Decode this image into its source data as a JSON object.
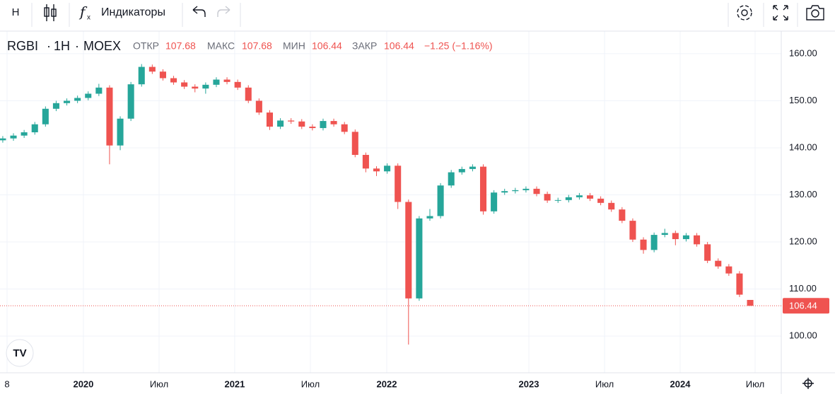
{
  "chart_data": {
    "type": "candlestick",
    "toolbar": {
      "interval": "Н",
      "indicators": "Индикаторы"
    },
    "symbol": "RGBI",
    "timeframe": "1H",
    "exchange": "MOEX",
    "legend_labels": {
      "open": "ОТКР",
      "high": "МАКС",
      "low": "МИН",
      "close": "ЗАКР"
    },
    "change_text": "−1.25 (−1.16%)",
    "up_color": "#26a69a",
    "down_color": "#ef5350",
    "grid": true,
    "x": [
      0,
      1,
      2,
      3,
      4,
      5,
      6,
      7,
      8,
      9,
      10,
      11,
      12,
      13,
      14,
      15,
      16,
      17,
      18,
      19,
      20,
      21,
      22,
      23,
      24,
      25,
      26,
      27,
      28,
      29,
      30,
      31,
      32,
      33,
      34,
      35,
      36,
      37,
      38,
      39,
      40,
      41,
      42,
      43,
      44,
      45,
      46,
      47,
      48,
      49,
      50,
      51,
      52,
      53,
      54,
      55,
      56,
      57,
      58,
      59,
      60,
      61,
      62,
      63,
      64,
      65,
      66,
      67,
      68,
      69,
      70
    ],
    "open": [
      141.6,
      142.0,
      142.6,
      143.3,
      145.0,
      148.3,
      149.5,
      150.0,
      150.6,
      151.5,
      152.8,
      140.5,
      146.2,
      153.5,
      157.2,
      156.2,
      154.8,
      153.9,
      153.0,
      152.6,
      153.4,
      154.5,
      154.0,
      152.8,
      150.0,
      147.5,
      144.5,
      145.8,
      145.6,
      144.5,
      144.2,
      145.7,
      145.0,
      143.4,
      138.5,
      135.6,
      135.0,
      136.2,
      128.5,
      108.0,
      125.0,
      125.5,
      132.0,
      134.8,
      135.5,
      136.0,
      126.5,
      130.5,
      130.8,
      131.0,
      131.3,
      130.2,
      128.8,
      128.9,
      129.5,
      129.9,
      129.2,
      128.3,
      126.9,
      124.5,
      120.5,
      118.3,
      121.5,
      121.9,
      120.6,
      121.4,
      119.5,
      116.0,
      114.8,
      113.3,
      107.68
    ],
    "high": [
      142.5,
      143.1,
      143.8,
      145.5,
      148.8,
      150.0,
      150.5,
      151.1,
      152.0,
      153.6,
      153.3,
      146.7,
      154.0,
      157.8,
      157.7,
      156.7,
      155.3,
      154.4,
      153.5,
      153.9,
      155.0,
      155.0,
      154.5,
      153.3,
      150.5,
      148.0,
      146.3,
      146.3,
      146.1,
      145.0,
      146.2,
      146.2,
      145.5,
      143.9,
      139.0,
      136.1,
      136.7,
      136.7,
      129.0,
      125.5,
      127.0,
      132.5,
      135.3,
      136.0,
      136.5,
      136.5,
      131.0,
      131.3,
      131.5,
      131.8,
      131.8,
      130.7,
      129.4,
      130.0,
      130.4,
      130.4,
      129.7,
      128.8,
      127.4,
      125.0,
      121.0,
      122.0,
      122.8,
      122.4,
      121.9,
      121.9,
      120.0,
      116.5,
      115.3,
      113.8,
      107.68
    ],
    "low": [
      141.1,
      141.5,
      142.1,
      142.8,
      144.5,
      147.8,
      149.0,
      149.5,
      150.1,
      151.0,
      136.5,
      139.5,
      145.7,
      153.0,
      155.7,
      154.3,
      153.4,
      152.5,
      151.8,
      151.5,
      152.9,
      153.5,
      152.3,
      149.5,
      147.0,
      143.8,
      144.0,
      145.1,
      144.0,
      143.7,
      143.7,
      144.5,
      142.9,
      138.0,
      134.8,
      134.0,
      134.5,
      127.0,
      98.2,
      107.5,
      124.5,
      125.0,
      131.5,
      134.3,
      135.0,
      125.8,
      126.0,
      130.0,
      130.3,
      130.5,
      129.7,
      128.3,
      128.3,
      128.4,
      129.0,
      128.7,
      127.8,
      126.4,
      124.0,
      120.0,
      117.5,
      117.8,
      121.0,
      119.3,
      120.1,
      119.0,
      115.5,
      114.3,
      112.8,
      108.3,
      106.44
    ],
    "close": [
      142.0,
      142.6,
      143.3,
      145.0,
      148.3,
      149.5,
      150.0,
      150.6,
      151.5,
      152.8,
      140.5,
      146.2,
      153.5,
      157.2,
      156.2,
      154.8,
      153.9,
      153.0,
      152.6,
      153.4,
      154.5,
      154.0,
      152.8,
      150.0,
      147.5,
      144.5,
      145.8,
      145.6,
      144.5,
      144.2,
      145.7,
      145.0,
      143.4,
      138.5,
      135.6,
      135.0,
      136.2,
      128.5,
      108.0,
      125.0,
      125.5,
      132.0,
      134.8,
      135.5,
      136.0,
      126.5,
      130.5,
      130.8,
      131.0,
      131.3,
      130.2,
      128.8,
      128.9,
      129.5,
      129.9,
      129.2,
      128.3,
      126.9,
      124.5,
      120.5,
      118.3,
      121.5,
      121.9,
      120.6,
      121.4,
      119.5,
      116.0,
      114.8,
      113.3,
      108.8,
      106.44
    ],
    "xlim": [
      -0.26,
      72.91
    ],
    "xticks": [
      {
        "value": 0.4,
        "label": "8"
      },
      {
        "value": 7.55,
        "label": "2020"
      },
      {
        "value": 14.64,
        "label": "Июл"
      },
      {
        "value": 21.72,
        "label": "2021"
      },
      {
        "value": 28.81,
        "label": "Июл"
      },
      {
        "value": 35.96,
        "label": "2022"
      },
      {
        "value": 49.27,
        "label": "2023"
      },
      {
        "value": 56.36,
        "label": "Июл"
      },
      {
        "value": 63.44,
        "label": "2024"
      },
      {
        "value": 70.46,
        "label": "Июл"
      }
    ],
    "ylim": [
      92.2,
      164.8
    ],
    "yticks": [
      {
        "value": 100,
        "label": "100.00"
      },
      {
        "value": 110,
        "label": "110.00"
      },
      {
        "value": 120,
        "label": "120.00"
      },
      {
        "value": 130,
        "label": "130.00"
      },
      {
        "value": 140,
        "label": "140.00"
      },
      {
        "value": 150,
        "label": "150.00"
      },
      {
        "value": 160,
        "label": "160.00"
      }
    ]
  }
}
